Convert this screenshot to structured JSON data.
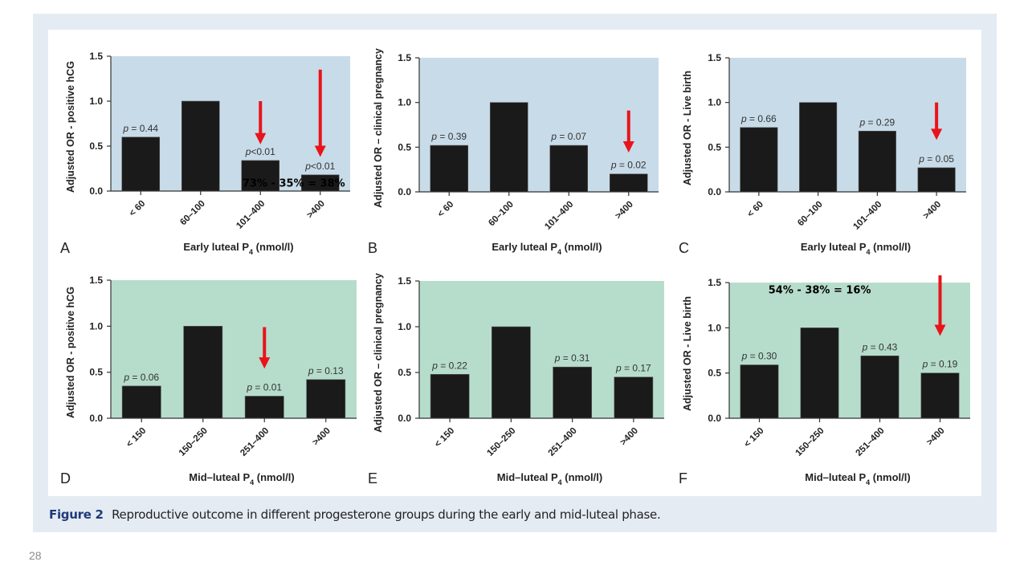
{
  "page_number": "28",
  "caption": {
    "label": "Figure 2",
    "text": "Reproductive outcome in different progesterone groups during the early and mid-luteal phase."
  },
  "colors": {
    "early_bg": "#c8dbe8",
    "mid_bg": "#b6ddcb",
    "bar": "#1a1a1a",
    "arrow": "#e8141a",
    "frame": "#e4ebf3",
    "caption_label": "#1f3a78"
  },
  "chart_data": [
    {
      "type": "bar",
      "panel": "A",
      "title": "",
      "ylabel": "Adjusted OR - positive hCG",
      "xlabel": "Early luteal P",
      "xlabel_sub": "4",
      "xlabel_unit": " (nmol/l)",
      "categories": [
        "< 60",
        "60–100",
        "101–400",
        ">400"
      ],
      "values": [
        0.6,
        1.0,
        0.34,
        0.18
      ],
      "p_values": [
        "p = 0.44",
        "",
        "p<0.01",
        "p<0.01"
      ],
      "ylim": [
        0,
        1.5
      ],
      "yticks": [
        "0.0",
        "0.5",
        "1.0",
        "1.5"
      ],
      "background": "early",
      "arrows": [
        {
          "category_index": 2,
          "from": 1.0,
          "to": 0.52
        },
        {
          "category_index": 3,
          "from": 1.35,
          "to": 0.38
        }
      ],
      "annotation": {
        "text": "73% - 35% = 38%",
        "anchor_category": 2.2,
        "y": 0.05
      }
    },
    {
      "type": "bar",
      "panel": "B",
      "ylabel": "Adjusted OR – clinical pregnancy",
      "xlabel": "Early luteal P",
      "xlabel_sub": "4",
      "xlabel_unit": " (nmol/l)",
      "categories": [
        "< 60",
        "60–100",
        "101–400",
        ">400"
      ],
      "values": [
        0.52,
        1.0,
        0.52,
        0.2
      ],
      "p_values": [
        "p = 0.39",
        "",
        "p = 0.07",
        "p = 0.02"
      ],
      "ylim": [
        0,
        1.5
      ],
      "yticks": [
        "0.0",
        "0.5",
        "1.0",
        "1.5"
      ],
      "background": "early",
      "arrows": [
        {
          "category_index": 3,
          "from": 0.91,
          "to": 0.44
        }
      ]
    },
    {
      "type": "bar",
      "panel": "C",
      "ylabel": "Adjusted OR - Live birth",
      "xlabel": "Early luteal P",
      "xlabel_sub": "4",
      "xlabel_unit": " (nmol/l)",
      "categories": [
        "< 60",
        "60–100",
        "101–400",
        ">400"
      ],
      "values": [
        0.72,
        1.0,
        0.68,
        0.27
      ],
      "p_values": [
        "p = 0.66",
        "",
        "p = 0.29",
        "p = 0.05"
      ],
      "ylim": [
        0,
        1.5
      ],
      "yticks": [
        "0.0",
        "0.5",
        "1.0",
        "1.5"
      ],
      "background": "early",
      "arrows": [
        {
          "category_index": 3,
          "from": 1.0,
          "to": 0.58
        }
      ]
    },
    {
      "type": "bar",
      "panel": "D",
      "ylabel": "Adjusted OR - positive hCG",
      "xlabel": "Mid–luteal P",
      "xlabel_sub": "4",
      "xlabel_unit": " (nmol/l)",
      "categories": [
        "< 150",
        "150–250",
        "251–400",
        ">400"
      ],
      "values": [
        0.35,
        1.0,
        0.24,
        0.42
      ],
      "p_values": [
        "p = 0.06",
        "",
        "p = 0.01",
        "p = 0.13"
      ],
      "ylim": [
        0,
        1.5
      ],
      "yticks": [
        "0.0",
        "0.5",
        "1.0",
        "1.5"
      ],
      "background": "mid",
      "arrows": [
        {
          "category_index": 2,
          "from": 0.99,
          "to": 0.54
        }
      ]
    },
    {
      "type": "bar",
      "panel": "E",
      "ylabel": "Adjusted OR – clinical pregnancy",
      "xlabel": "Mid–luteal P",
      "xlabel_sub": "4",
      "xlabel_unit": " (nmol/l)",
      "categories": [
        "< 150",
        "150–250",
        "251–400",
        ">400"
      ],
      "values": [
        0.48,
        1.0,
        0.56,
        0.45
      ],
      "p_values": [
        "p = 0.22",
        "",
        "p = 0.31",
        "p = 0.17"
      ],
      "ylim": [
        0,
        1.5
      ],
      "yticks": [
        "0.0",
        "0.5",
        "1.0",
        "1.5"
      ],
      "background": "mid",
      "arrows": []
    },
    {
      "type": "bar",
      "panel": "F",
      "ylabel": "Adjusted OR - Live birth",
      "xlabel": "Mid–luteal P",
      "xlabel_sub": "4",
      "xlabel_unit": " (nmol/l)",
      "categories": [
        "< 150",
        "150–250",
        "251–400",
        ">400"
      ],
      "values": [
        0.59,
        1.0,
        0.69,
        0.5
      ],
      "p_values": [
        "p = 0.30",
        "",
        "p = 0.43",
        "p = 0.19"
      ],
      "ylim": [
        0,
        1.5
      ],
      "yticks": [
        "0.0",
        "0.5",
        "1.0",
        "1.5"
      ],
      "background": "mid",
      "arrows": [
        {
          "category_index": 3,
          "from": 1.58,
          "to": 0.91
        }
      ],
      "annotation": {
        "text": "54% - 38% = 16%",
        "anchor_category": 0.65,
        "y": 1.38
      }
    }
  ]
}
